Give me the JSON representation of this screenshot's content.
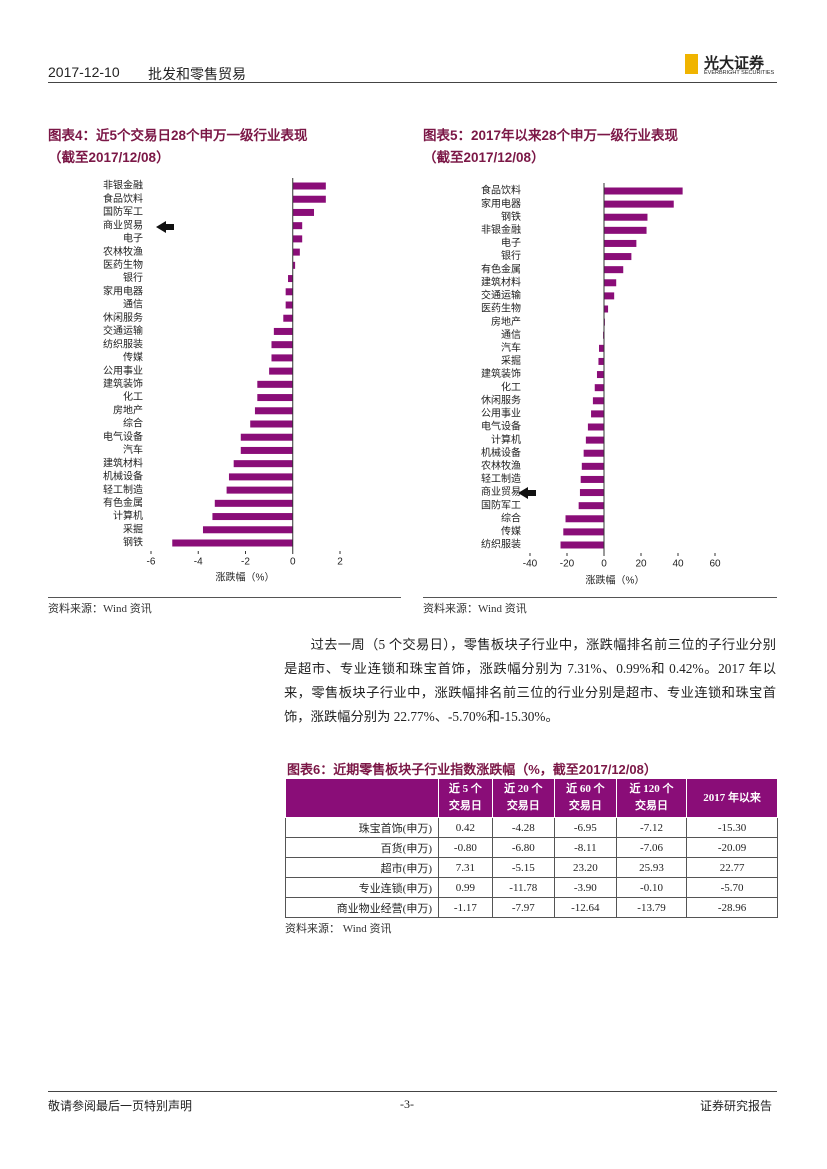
{
  "header": {
    "date": "2017-12-10",
    "industry": "批发和零售贸易",
    "logo": "光大证券",
    "logo_en": "EVERBRIGHT SECURITIES"
  },
  "chart_data": [
    {
      "type": "bar",
      "orientation": "horizontal",
      "title": "图表4：近5个交易日28个申万一级行业表现",
      "subtitle": "（截至2017/12/08）",
      "categories": [
        "非银金融",
        "食品饮料",
        "国防军工",
        "商业贸易",
        "电子",
        "农林牧渔",
        "医药生物",
        "银行",
        "家用电器",
        "通信",
        "休闲服务",
        "交通运输",
        "纺织服装",
        "传媒",
        "公用事业",
        "建筑装饰",
        "化工",
        "房地产",
        "综合",
        "电气设备",
        "汽车",
        "建筑材料",
        "机械设备",
        "轻工制造",
        "有色金属",
        "计算机",
        "采掘",
        "钢铁"
      ],
      "values": [
        1.4,
        1.4,
        0.9,
        0.4,
        0.4,
        0.3,
        0.1,
        -0.2,
        -0.3,
        -0.3,
        -0.4,
        -0.8,
        -0.9,
        -0.9,
        -1.0,
        -1.5,
        -1.5,
        -1.6,
        -1.8,
        -2.2,
        -2.2,
        -2.5,
        -2.7,
        -2.8,
        -3.3,
        -3.4,
        -3.8,
        -5.1
      ],
      "color": "#8a0d78",
      "xlim": [
        -6,
        2
      ],
      "xticks": [
        -6,
        -4,
        -2,
        0,
        2
      ],
      "xlabel": "涨跌幅（%）"
    },
    {
      "type": "bar",
      "orientation": "horizontal",
      "title": "图表5：2017年以来28个申万一级行业表现",
      "subtitle": "（截至2017/12/08）",
      "categories": [
        "食品饮料",
        "家用电器",
        "钢铁",
        "非银金融",
        "电子",
        "银行",
        "有色金属",
        "建筑材料",
        "交通运输",
        "医药生物",
        "房地产",
        "通信",
        "汽车",
        "采掘",
        "建筑装饰",
        "化工",
        "休闲服务",
        "公用事业",
        "电气设备",
        "计算机",
        "机械设备",
        "农林牧渔",
        "轻工制造",
        "商业贸易",
        "国防军工",
        "综合",
        "传媒",
        "纺织服装"
      ],
      "values": [
        42.5,
        37.7,
        23.5,
        23,
        17.5,
        14.8,
        10.4,
        6.6,
        5.5,
        2.2,
        0.5,
        -0.5,
        -2.7,
        -3,
        -3.8,
        -5,
        -6,
        -7,
        -8.7,
        -9.8,
        -11,
        -12,
        -12.6,
        -13,
        -13.7,
        -20.8,
        -22,
        -23.5
      ],
      "color": "#8a0d78",
      "xlim": [
        -40,
        60
      ],
      "xticks": [
        -40,
        -20,
        0,
        20,
        40,
        60
      ],
      "xlabel": "涨跌幅（%）"
    }
  ],
  "sources": [
    "资料来源：Wind 资讯",
    "资料来源：Wind 资讯",
    "资料来源： Wind 资讯"
  ],
  "paragraph": "过去一周（5 个交易日），零售板块子行业中，涨跌幅排名前三位的子行业分别是超市、专业连锁和珠宝首饰，涨跌幅分别为 7.31%、0.99%和 0.42%。2017 年以来，零售板块子行业中，涨跌幅排名前三位的行业分别是超市、专业连锁和珠宝首饰，涨跌幅分别为 22.77%、-5.70%和-15.30%。",
  "table": {
    "title": "图表6：近期零售板块子行业指数涨跌幅（%，截至2017/12/08）",
    "header": [
      "近 5 个\n交易日",
      "近 20 个\n交易日",
      "近 60 个\n交易日",
      "近 120 个\n交易日",
      "2017 年以来"
    ],
    "rows": [
      [
        "珠宝首饰(申万)",
        "0.42",
        "-4.28",
        "-6.95",
        "-7.12",
        "-15.30"
      ],
      [
        "百货(申万)",
        "-0.80",
        "-6.80",
        "-8.11",
        "-7.06",
        "-20.09"
      ],
      [
        "超市(申万)",
        "7.31",
        "-5.15",
        "23.20",
        "25.93",
        "22.77"
      ],
      [
        "专业连锁(申万)",
        "0.99",
        "-11.78",
        "-3.90",
        "-0.10",
        "-5.70"
      ],
      [
        "商业物业经营(申万)",
        "-1.17",
        "-7.97",
        "-12.64",
        "-13.79",
        "-28.96"
      ]
    ]
  },
  "footer": {
    "disclaimer": "敬请参阅最后一页特别声明",
    "page": "-3-",
    "report_type": "证券研究报告"
  }
}
